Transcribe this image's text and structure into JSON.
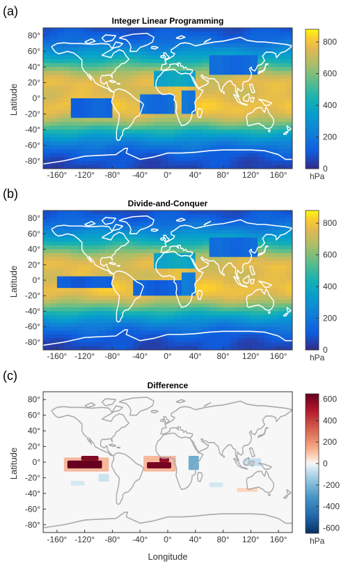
{
  "chart_data": [
    {
      "type": "heatmap",
      "panel_label": "(a)",
      "title": "Integer Linear Programming",
      "xlabel": "",
      "ylabel": "Latitude",
      "xlim": [
        -180,
        180
      ],
      "ylim": [
        -90,
        90
      ],
      "x_ticks": [
        -160,
        -120,
        -80,
        -40,
        0,
        40,
        80,
        120,
        160
      ],
      "y_ticks": [
        -80,
        -60,
        -40,
        -20,
        0,
        20,
        40,
        60,
        80
      ],
      "colorbar": {
        "ticks": [
          0,
          200,
          400,
          600,
          800
        ],
        "range": [
          0,
          880
        ],
        "unit": "hPa",
        "colormap": "parula"
      },
      "zonal_profile": {
        "lat": [
          -90,
          -80,
          -70,
          -60,
          -50,
          -40,
          -30,
          -20,
          -10,
          0,
          10,
          20,
          30,
          40,
          50,
          60,
          70,
          80,
          90
        ],
        "value": [
          60,
          80,
          120,
          200,
          320,
          470,
          640,
          760,
          800,
          760,
          740,
          760,
          700,
          560,
          420,
          300,
          190,
          120,
          80
        ]
      },
      "anomalies": [
        {
          "name": "east-pacific-low",
          "lon": [
            -140,
            -80
          ],
          "lat": [
            -25,
            2
          ],
          "value": 130
        },
        {
          "name": "south-atlantic-low",
          "lon": [
            -35,
            8
          ],
          "lat": [
            -20,
            3
          ],
          "value": 160
        },
        {
          "name": "africa-east-low",
          "lon": [
            18,
            42
          ],
          "lat": [
            -18,
            8
          ],
          "value": 200
        },
        {
          "name": "sahara-low",
          "lon": [
            -15,
            40
          ],
          "lat": [
            15,
            33
          ],
          "value": 380
        },
        {
          "name": "asia-low",
          "lon": [
            60,
            130
          ],
          "lat": [
            30,
            55
          ],
          "value": 150
        }
      ]
    },
    {
      "type": "heatmap",
      "panel_label": "(b)",
      "title": "Divide-and-Conquer",
      "xlabel": "",
      "ylabel": "Latitude",
      "xlim": [
        -180,
        180
      ],
      "ylim": [
        -90,
        90
      ],
      "x_ticks": [
        -160,
        -120,
        -80,
        -40,
        0,
        40,
        80,
        120,
        160
      ],
      "y_ticks": [
        -80,
        -60,
        -40,
        -20,
        0,
        20,
        40,
        60,
        80
      ],
      "colorbar": {
        "ticks": [
          0,
          200,
          400,
          600,
          800
        ],
        "range": [
          0,
          880
        ],
        "unit": "hPa",
        "colormap": "parula"
      },
      "zonal_profile": {
        "lat": [
          -90,
          -80,
          -70,
          -60,
          -50,
          -40,
          -30,
          -20,
          -10,
          0,
          10,
          20,
          30,
          40,
          50,
          60,
          70,
          80,
          90
        ],
        "value": [
          60,
          80,
          120,
          200,
          320,
          470,
          640,
          760,
          800,
          760,
          740,
          760,
          700,
          560,
          420,
          300,
          190,
          120,
          80
        ]
      },
      "anomalies": [
        {
          "name": "east-pacific-low",
          "lon": [
            -155,
            -85
          ],
          "lat": [
            -12,
            4
          ],
          "value": 110
        },
        {
          "name": "south-atlantic-low",
          "lon": [
            -45,
            15
          ],
          "lat": [
            -22,
            2
          ],
          "value": 120
        },
        {
          "name": "africa-east-low",
          "lon": [
            18,
            42
          ],
          "lat": [
            -18,
            8
          ],
          "value": 220
        },
        {
          "name": "sahara-low",
          "lon": [
            -15,
            40
          ],
          "lat": [
            15,
            33
          ],
          "value": 380
        },
        {
          "name": "asia-low",
          "lon": [
            60,
            130
          ],
          "lat": [
            30,
            55
          ],
          "value": 150
        }
      ]
    },
    {
      "type": "heatmap",
      "panel_label": "(c)",
      "title": "Difference",
      "xlabel": "Longitude",
      "ylabel": "Latitude",
      "xlim": [
        -180,
        180
      ],
      "ylim": [
        -90,
        90
      ],
      "x_ticks": [
        -160,
        -120,
        -80,
        -40,
        0,
        40,
        80,
        120,
        160
      ],
      "y_ticks": [
        -80,
        -60,
        -40,
        -20,
        0,
        20,
        40,
        60,
        80
      ],
      "colorbar": {
        "ticks": [
          -600,
          -400,
          -200,
          0,
          200,
          400,
          600
        ],
        "range": [
          -650,
          650
        ],
        "unit": "hPa",
        "colormap": "diverging-red-blue"
      },
      "features": [
        {
          "name": "pacific-positive",
          "lon": [
            -145,
            -95
          ],
          "lat": [
            -8,
            2
          ],
          "value": 650
        },
        {
          "name": "pacific-positive-upper",
          "lon": [
            -125,
            -100
          ],
          "lat": [
            2,
            8
          ],
          "value": 600
        },
        {
          "name": "atlantic-positive",
          "lon": [
            -30,
            5
          ],
          "lat": [
            -8,
            0
          ],
          "value": 620
        },
        {
          "name": "atlantic-positive-upper",
          "lon": [
            -12,
            2
          ],
          "lat": [
            0,
            6
          ],
          "value": 550
        },
        {
          "name": "pacific-halo",
          "lon": [
            -150,
            -85
          ],
          "lat": [
            -12,
            6
          ],
          "value": 150
        },
        {
          "name": "atlantic-halo",
          "lon": [
            -35,
            12
          ],
          "lat": [
            -12,
            8
          ],
          "value": 150
        },
        {
          "name": "africa-negative",
          "lon": [
            30,
            45
          ],
          "lat": [
            -10,
            8
          ],
          "value": -300
        },
        {
          "name": "south-pacific-negative",
          "lon": [
            -140,
            -120
          ],
          "lat": [
            -30,
            -24
          ],
          "value": -60
        },
        {
          "name": "indian-negative",
          "lon": [
            60,
            80
          ],
          "lat": [
            -32,
            -26
          ],
          "value": -60
        },
        {
          "name": "indonesia-negative",
          "lon": [
            110,
            135
          ],
          "lat": [
            -5,
            5
          ],
          "value": -90
        },
        {
          "name": "south-indian-positive",
          "lon": [
            100,
            130
          ],
          "lat": [
            -38,
            -33
          ],
          "value": 80
        },
        {
          "name": "east-pacific-negative",
          "lon": [
            -100,
            -85
          ],
          "lat": [
            -25,
            -15
          ],
          "value": -80
        }
      ]
    }
  ]
}
